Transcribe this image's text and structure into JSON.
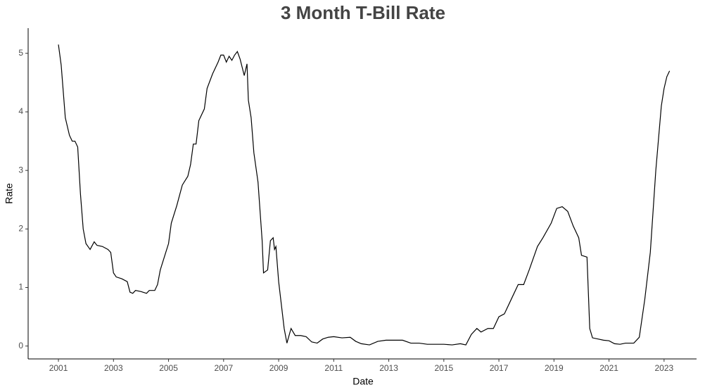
{
  "chart_data": {
    "type": "line",
    "title": "3 Month T-Bill Rate",
    "x_label": "Date",
    "y_label": "Rate",
    "color": "#000000",
    "x": [
      2001.0,
      2001.1,
      2001.25,
      2001.4,
      2001.5,
      2001.6,
      2001.7,
      2001.8,
      2001.9,
      2002.0,
      2002.15,
      2002.3,
      2002.4,
      2002.6,
      2002.8,
      2002.9,
      2003.0,
      2003.1,
      2003.3,
      2003.5,
      2003.6,
      2003.7,
      2003.8,
      2004.0,
      2004.2,
      2004.3,
      2004.5,
      2004.6,
      2004.7,
      2004.9,
      2005.0,
      2005.1,
      2005.3,
      2005.5,
      2005.7,
      2005.8,
      2005.9,
      2006.0,
      2006.1,
      2006.3,
      2006.4,
      2006.6,
      2006.8,
      2006.9,
      2007.0,
      2007.1,
      2007.2,
      2007.3,
      2007.4,
      2007.5,
      2007.6,
      2007.75,
      2007.85,
      2007.9,
      2008.0,
      2008.1,
      2008.25,
      2008.4,
      2008.45,
      2008.6,
      2008.7,
      2008.8,
      2008.85,
      2008.9,
      2009.0,
      2009.2,
      2009.3,
      2009.45,
      2009.6,
      2009.8,
      2010.0,
      2010.2,
      2010.4,
      2010.6,
      2010.8,
      2011.0,
      2011.3,
      2011.6,
      2011.8,
      2012.0,
      2012.3,
      2012.6,
      2012.9,
      2013.2,
      2013.5,
      2013.8,
      2014.1,
      2014.4,
      2014.7,
      2015.0,
      2015.3,
      2015.6,
      2015.8,
      2016.0,
      2016.2,
      2016.35,
      2016.6,
      2016.8,
      2017.0,
      2017.2,
      2017.4,
      2017.7,
      2017.9,
      2018.1,
      2018.4,
      2018.6,
      2018.9,
      2019.1,
      2019.3,
      2019.5,
      2019.7,
      2019.9,
      2020.0,
      2020.2,
      2020.3,
      2020.4,
      2020.6,
      2020.8,
      2021.0,
      2021.2,
      2021.4,
      2021.6,
      2021.9,
      2022.1,
      2022.3,
      2022.5,
      2022.7,
      2022.9,
      2023.0,
      2023.1,
      2023.2
    ],
    "values": [
      5.15,
      4.8,
      3.9,
      3.6,
      3.5,
      3.5,
      3.4,
      2.6,
      2.0,
      1.75,
      1.65,
      1.78,
      1.72,
      1.7,
      1.65,
      1.6,
      1.25,
      1.18,
      1.15,
      1.1,
      0.92,
      0.9,
      0.95,
      0.93,
      0.9,
      0.95,
      0.95,
      1.05,
      1.3,
      1.6,
      1.75,
      2.1,
      2.4,
      2.75,
      2.9,
      3.1,
      3.45,
      3.45,
      3.85,
      4.05,
      4.4,
      4.65,
      4.85,
      4.97,
      4.97,
      4.85,
      4.95,
      4.88,
      4.97,
      5.03,
      4.9,
      4.62,
      4.82,
      4.2,
      3.9,
      3.3,
      2.8,
      1.8,
      1.25,
      1.3,
      1.8,
      1.85,
      1.65,
      1.7,
      1.1,
      0.3,
      0.05,
      0.3,
      0.18,
      0.18,
      0.16,
      0.07,
      0.05,
      0.12,
      0.15,
      0.16,
      0.14,
      0.15,
      0.08,
      0.04,
      0.02,
      0.08,
      0.1,
      0.1,
      0.1,
      0.05,
      0.05,
      0.03,
      0.03,
      0.03,
      0.02,
      0.04,
      0.02,
      0.2,
      0.3,
      0.24,
      0.3,
      0.3,
      0.5,
      0.55,
      0.75,
      1.05,
      1.05,
      1.3,
      1.7,
      1.85,
      2.1,
      2.35,
      2.38,
      2.3,
      2.05,
      1.85,
      1.55,
      1.52,
      0.3,
      0.14,
      0.12,
      0.1,
      0.09,
      0.04,
      0.03,
      0.05,
      0.05,
      0.15,
      0.8,
      1.6,
      3.0,
      4.1,
      4.4,
      4.6,
      4.7
    ],
    "xlim": [
      1999.9,
      2024.18
    ],
    "ylim": [
      -0.22,
      5.43
    ],
    "xticks": [
      2001,
      2003,
      2005,
      2007,
      2009,
      2011,
      2013,
      2015,
      2017,
      2019,
      2021,
      2023
    ],
    "yticks": [
      0,
      1,
      2,
      3,
      4,
      5
    ]
  }
}
